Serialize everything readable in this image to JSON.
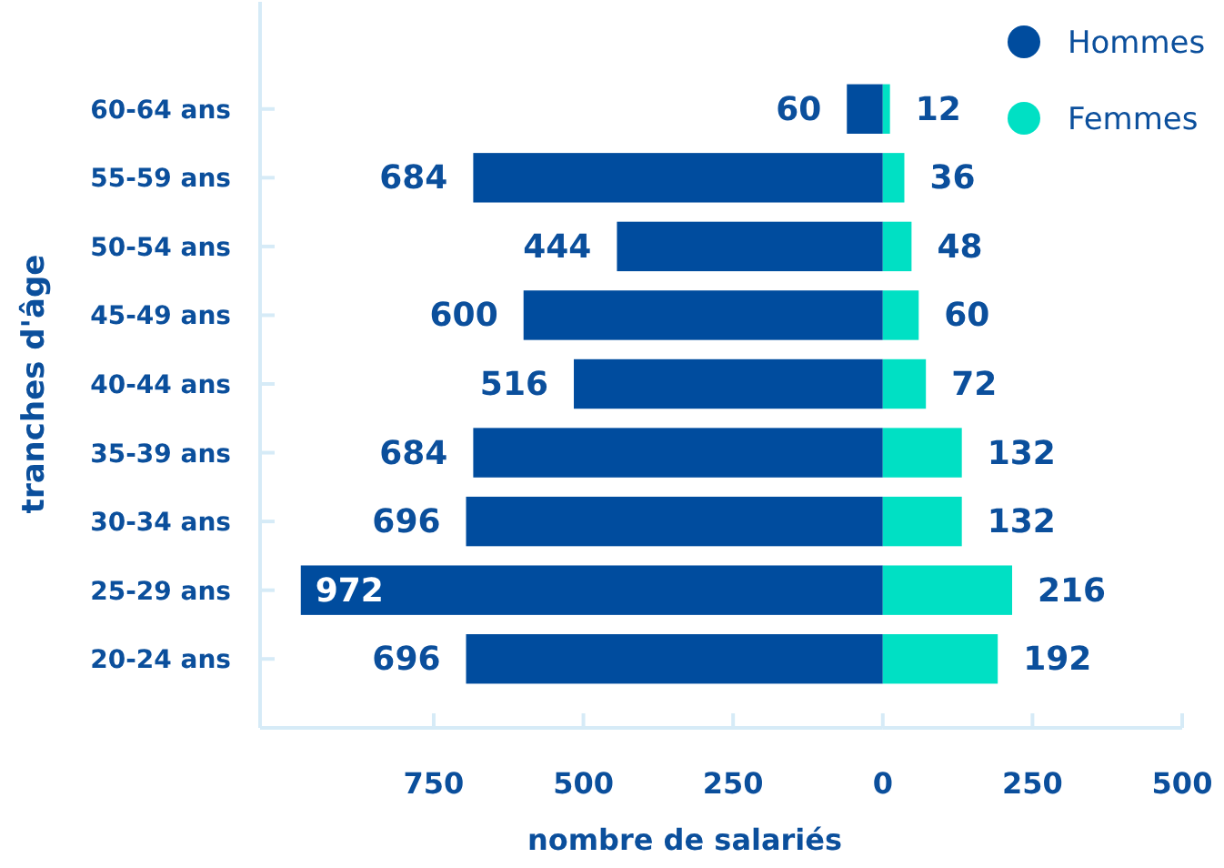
{
  "chart_data": [
    {
      "type": "bar",
      "orientation": "horizontal",
      "xlabel": "nombre de salariés",
      "ylabel": "tranches d'âge",
      "categories": [
        "60-64 ans",
        "55-59 ans",
        "50-54 ans",
        "45-49 ans",
        "40-44 ans",
        "35-39 ans",
        "30-34 ans",
        "25-29 ans",
        "20-24 ans"
      ],
      "series": [
        {
          "name": "Hommes",
          "color": "#004c9e",
          "values": [
            60,
            684,
            444,
            600,
            516,
            684,
            696,
            972,
            696
          ]
        }
      ],
      "data_labels": true,
      "xlim": [
        1040,
        0
      ],
      "xticks": [
        750,
        500,
        250,
        0
      ],
      "grid": false,
      "legend": "top right"
    },
    {
      "type": "bar",
      "orientation": "horizontal",
      "series": [
        {
          "name": "Femmes",
          "color": "#00e0c4",
          "values": [
            12,
            36,
            48,
            60,
            72,
            132,
            132,
            216,
            192
          ]
        }
      ],
      "data_labels": true,
      "xlim": [
        0,
        500
      ],
      "xticks": [
        250,
        500
      ],
      "grid": false,
      "legend": "top right",
      "tick_labels": "x"
    }
  ]
}
